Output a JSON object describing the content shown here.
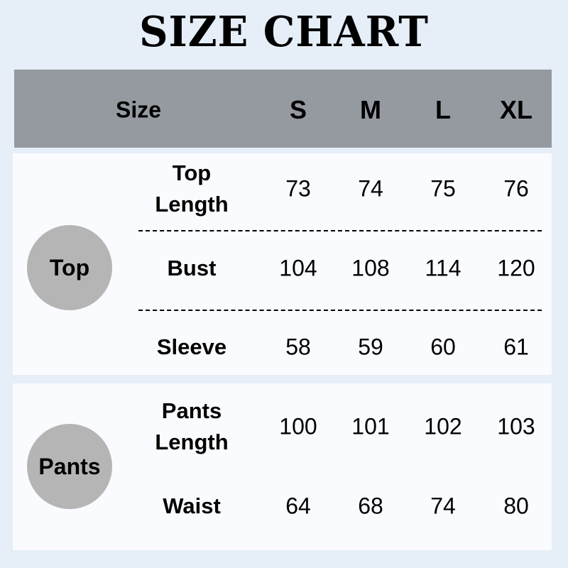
{
  "title": "SIZE CHART",
  "header": {
    "size_label": "Size",
    "sizes": [
      "S",
      "M",
      "L",
      "XL"
    ]
  },
  "sections": [
    {
      "name": "Top",
      "rows": [
        {
          "label": "Top Length",
          "values": [
            "73",
            "74",
            "75",
            "76"
          ]
        },
        {
          "label": "Bust",
          "values": [
            "104",
            "108",
            "114",
            "120"
          ]
        },
        {
          "label": "Sleeve",
          "values": [
            "58",
            "59",
            "60",
            "61"
          ]
        }
      ]
    },
    {
      "name": "Pants",
      "rows": [
        {
          "label": "Pants Length",
          "values": [
            "100",
            "101",
            "102",
            "103"
          ]
        },
        {
          "label": "Waist",
          "values": [
            "64",
            "68",
            "74",
            "80"
          ]
        }
      ]
    }
  ],
  "colors": {
    "background": "#e6eff8",
    "header": "#949a9f",
    "panel": "#f9fbfe",
    "circle": "#b5b5b5"
  }
}
